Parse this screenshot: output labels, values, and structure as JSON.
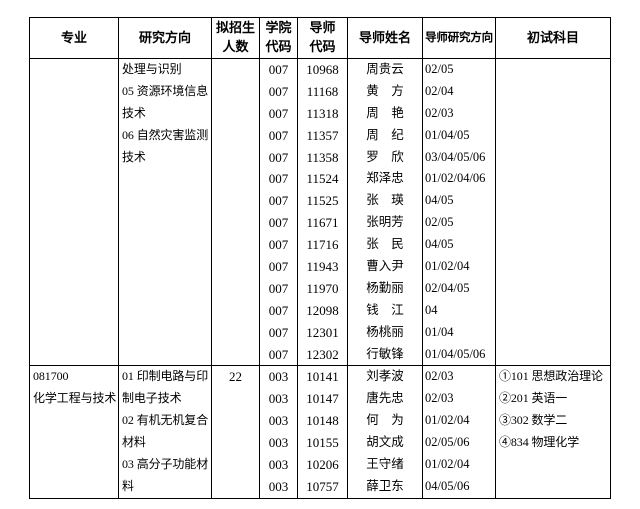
{
  "page": {
    "background_color": "#ffffff",
    "text_color": "#000000",
    "border_color": "#000000"
  },
  "table": {
    "headers": [
      [
        "专业"
      ],
      [
        "研究方向"
      ],
      [
        "拟招生",
        "人数"
      ],
      [
        "学院",
        "代码"
      ],
      [
        "导师",
        "代码"
      ],
      [
        "导师姓名"
      ],
      [
        "导师研究方向"
      ],
      [
        "初试科目"
      ]
    ],
    "blocks": [
      {
        "major": [],
        "research_direction": [
          "处理与识别",
          "05 资源环境信息",
          "技术",
          "06 自然灾害监测",
          "技术"
        ],
        "enrollment": "",
        "advisors": [
          {
            "college_code": "007",
            "tutor_code": "10968",
            "tutor_name": "周贵云",
            "tutor_research_directions": "02/05"
          },
          {
            "college_code": "007",
            "tutor_code": "11168",
            "tutor_name": "黄　方",
            "tutor_research_directions": "02/04"
          },
          {
            "college_code": "007",
            "tutor_code": "11318",
            "tutor_name": "周　艳",
            "tutor_research_directions": "02/03"
          },
          {
            "college_code": "007",
            "tutor_code": "11357",
            "tutor_name": "周　纪",
            "tutor_research_directions": "01/04/05"
          },
          {
            "college_code": "007",
            "tutor_code": "11358",
            "tutor_name": "罗　欣",
            "tutor_research_directions": "03/04/05/06"
          },
          {
            "college_code": "007",
            "tutor_code": "11524",
            "tutor_name": "郑泽忠",
            "tutor_research_directions": "01/02/04/06"
          },
          {
            "college_code": "007",
            "tutor_code": "11525",
            "tutor_name": "张　瑛",
            "tutor_research_directions": "04/05"
          },
          {
            "college_code": "007",
            "tutor_code": "11671",
            "tutor_name": "张明芳",
            "tutor_research_directions": "02/05"
          },
          {
            "college_code": "007",
            "tutor_code": "11716",
            "tutor_name": "张　民",
            "tutor_research_directions": "04/05"
          },
          {
            "college_code": "007",
            "tutor_code": "11943",
            "tutor_name": "曹入尹",
            "tutor_research_directions": "01/02/04"
          },
          {
            "college_code": "007",
            "tutor_code": "11970",
            "tutor_name": "杨勤丽",
            "tutor_research_directions": "02/04/05"
          },
          {
            "college_code": "007",
            "tutor_code": "12098",
            "tutor_name": "钱　江",
            "tutor_research_directions": "04"
          },
          {
            "college_code": "007",
            "tutor_code": "12301",
            "tutor_name": "杨桃丽",
            "tutor_research_directions": "01/04"
          },
          {
            "college_code": "007",
            "tutor_code": "12302",
            "tutor_name": "行敏锋",
            "tutor_research_directions": "01/04/05/06"
          }
        ],
        "exam_subjects": []
      },
      {
        "major": [
          "081700",
          "化学工程与技术"
        ],
        "research_direction": [
          "01 印制电路与印",
          "制电子技术",
          "02 有机无机复合",
          "材料",
          "03 高分子功能材",
          "料"
        ],
        "enrollment": "22",
        "advisors": [
          {
            "college_code": "003",
            "tutor_code": "10141",
            "tutor_name": "刘孝波",
            "tutor_research_directions": "02/03"
          },
          {
            "college_code": "003",
            "tutor_code": "10147",
            "tutor_name": "唐先忠",
            "tutor_research_directions": "02/03"
          },
          {
            "college_code": "003",
            "tutor_code": "10148",
            "tutor_name": "何　为",
            "tutor_research_directions": "01/02/04"
          },
          {
            "college_code": "003",
            "tutor_code": "10155",
            "tutor_name": "胡文成",
            "tutor_research_directions": "02/05/06"
          },
          {
            "college_code": "003",
            "tutor_code": "10206",
            "tutor_name": "王守绪",
            "tutor_research_directions": "01/02/04"
          },
          {
            "college_code": "003",
            "tutor_code": "10757",
            "tutor_name": "薛卫东",
            "tutor_research_directions": "04/05/06"
          }
        ],
        "exam_subjects": [
          "①101 思想政治理论",
          "②201 英语一",
          "③302 数学二",
          "④834 物理化学"
        ]
      }
    ]
  }
}
